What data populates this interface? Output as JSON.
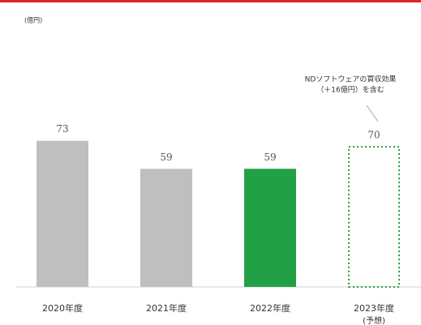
{
  "chart_data": {
    "type": "bar",
    "unit_label": "(億円)",
    "categories": [
      "2020年度",
      "2021年度",
      "2022年度",
      "2023年度"
    ],
    "forecast_label": "(予想)",
    "values": [
      73,
      59,
      59,
      70
    ],
    "colors": [
      "#bfbfbf",
      "#bfbfbf",
      "#22a045",
      "#22a045"
    ],
    "bar_styles": [
      "solid",
      "solid",
      "solid",
      "dotted"
    ],
    "annotation": [
      "NDソフトウェアの買収効果",
      "（＋16億円）を含む"
    ]
  }
}
